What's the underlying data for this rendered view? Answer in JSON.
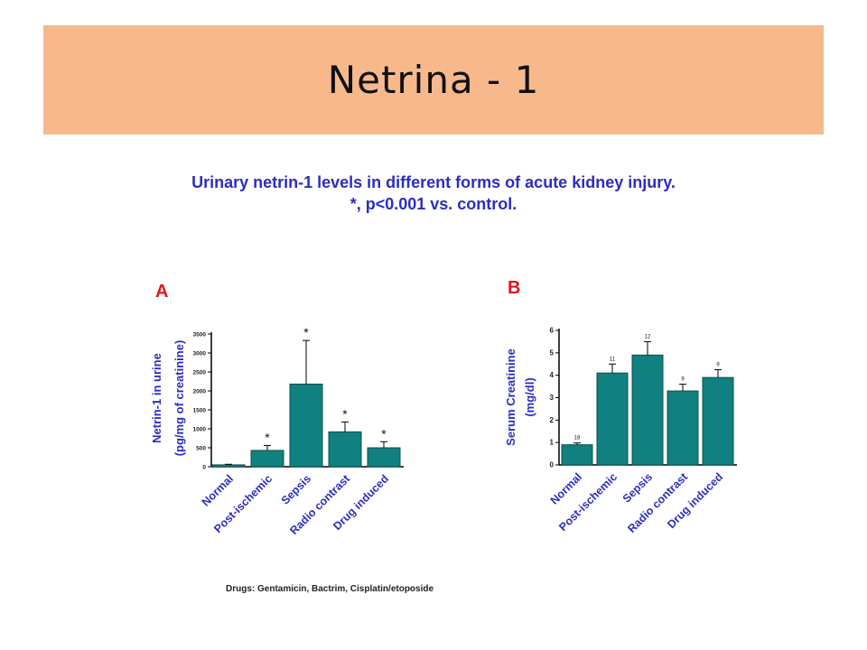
{
  "slide": {
    "title": "Netrina - 1",
    "caption_line1": "Urinary netrin-1 levels in different forms of acute kidney injury.",
    "caption_line2": "*, p<0.001 vs. control.",
    "footnote": "Drugs: Gentamicin, Bactrim, Cisplatin/etoposide"
  },
  "colors": {
    "title_band": "#f7b98c",
    "bar": "#118080",
    "axis_label": "#2b2dc2",
    "panel_letter": "#e0171c"
  },
  "chart_data": [
    {
      "type": "bar",
      "panel": "A",
      "title": "",
      "xlabel": "",
      "ylabel_line1": "Netrin-1 in urine",
      "ylabel_line2": "(pg/mg of creatinine)",
      "ylim": [
        0,
        3500
      ],
      "yticks": [
        0,
        500,
        1000,
        1500,
        2000,
        2500,
        3000,
        3500
      ],
      "ytick_labels": [
        "0",
        "500",
        "1000",
        "1500",
        "2000",
        "2500",
        "3000",
        "3500"
      ],
      "categories": [
        "Normal",
        "Post-ischemic",
        "Sepsis",
        "Radio contrast",
        "Drug induced"
      ],
      "values": [
        50,
        430,
        2180,
        920,
        500
      ],
      "errors": [
        15,
        130,
        1150,
        260,
        160
      ],
      "markers": [
        "",
        "*",
        "*",
        "*",
        "*"
      ]
    },
    {
      "type": "bar",
      "panel": "B",
      "title": "",
      "xlabel": "",
      "ylabel_line1": "Serum Creatinine",
      "ylabel_line2": "(mg/dl)",
      "ylim": [
        0,
        6
      ],
      "yticks": [
        0,
        1,
        2,
        3,
        4,
        5,
        6
      ],
      "ytick_labels": [
        "0",
        "1",
        "2",
        "3",
        "4",
        "5",
        "6"
      ],
      "categories": [
        "Normal",
        "Post-ischemic",
        "Sepsis",
        "Radio contrast",
        "Drug induced"
      ],
      "values": [
        0.9,
        4.1,
        4.9,
        3.3,
        3.9
      ],
      "errors": [
        0.08,
        0.4,
        0.6,
        0.3,
        0.35
      ],
      "markers": [
        "18",
        "11",
        "12",
        "9",
        "9"
      ]
    }
  ]
}
